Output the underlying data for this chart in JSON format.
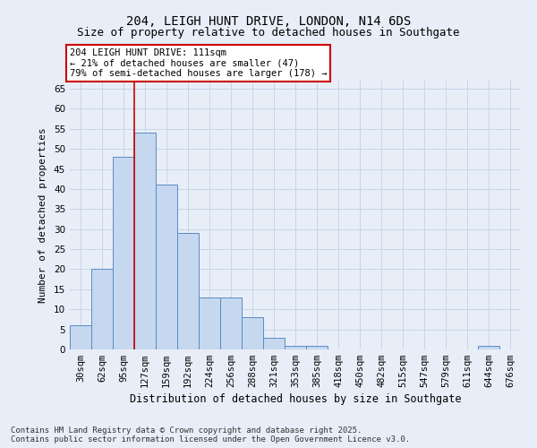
{
  "title_line1": "204, LEIGH HUNT DRIVE, LONDON, N14 6DS",
  "title_line2": "Size of property relative to detached houses in Southgate",
  "xlabel": "Distribution of detached houses by size in Southgate",
  "ylabel": "Number of detached properties",
  "categories": [
    "30sqm",
    "62sqm",
    "95sqm",
    "127sqm",
    "159sqm",
    "192sqm",
    "224sqm",
    "256sqm",
    "288sqm",
    "321sqm",
    "353sqm",
    "385sqm",
    "418sqm",
    "450sqm",
    "482sqm",
    "515sqm",
    "547sqm",
    "579sqm",
    "611sqm",
    "644sqm",
    "676sqm"
  ],
  "values": [
    6,
    20,
    48,
    54,
    41,
    29,
    13,
    13,
    8,
    3,
    1,
    1,
    0,
    0,
    0,
    0,
    0,
    0,
    0,
    1,
    0
  ],
  "bar_color": "#c5d8f0",
  "bar_edge_color": "#5b8ac4",
  "grid_color": "#c8d4e8",
  "bg_color": "#e8eef8",
  "ylim": [
    0,
    67
  ],
  "yticks": [
    0,
    5,
    10,
    15,
    20,
    25,
    30,
    35,
    40,
    45,
    50,
    55,
    60,
    65
  ],
  "annotation_text": "204 LEIGH HUNT DRIVE: 111sqm\n← 21% of detached houses are smaller (47)\n79% of semi-detached houses are larger (178) →",
  "annotation_box_facecolor": "#ffffff",
  "annotation_box_edgecolor": "#cc0000",
  "vline_x_index": 2.5,
  "vline_color": "#cc0000",
  "footnote": "Contains HM Land Registry data © Crown copyright and database right 2025.\nContains public sector information licensed under the Open Government Licence v3.0.",
  "title_fontsize": 10,
  "subtitle_fontsize": 9,
  "xlabel_fontsize": 8.5,
  "ylabel_fontsize": 8,
  "tick_fontsize": 7.5,
  "annot_fontsize": 7.5,
  "footnote_fontsize": 6.5
}
